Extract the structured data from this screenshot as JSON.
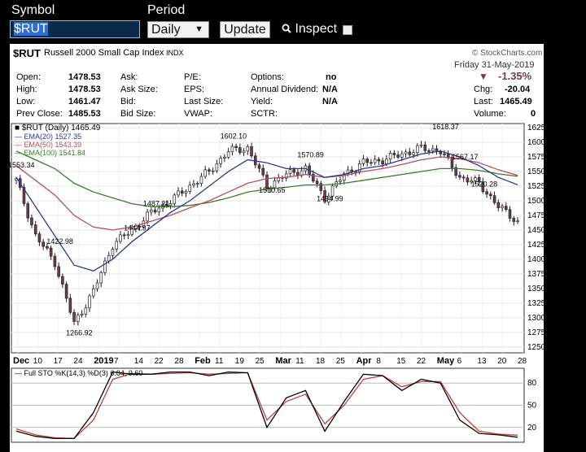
{
  "toolbar": {
    "symbol_label": "Symbol",
    "symbol_value": "$RUT",
    "period_label": "Period",
    "period_value": "Daily",
    "update_label": "Update",
    "inspect_label": "Inspect"
  },
  "header": {
    "symbol": "$RUT",
    "name": "Russell 2000 Small Cap Index",
    "exchange": "INDX",
    "brand": "© StockCharts.com",
    "date": "Friday  31-May-2019",
    "change_pct": "-1.35%",
    "change_arrow": "▼",
    "quote_left": [
      {
        "label": "Open:",
        "value": "1478.53"
      },
      {
        "label": "High:",
        "value": "1478.53"
      },
      {
        "label": "Low:",
        "value": "1461.47"
      },
      {
        "label": "Prev Close:",
        "value": "1485.53"
      }
    ],
    "quote_mid": [
      "Ask:",
      "Ask Size:",
      "Bid:",
      "Bid Size:"
    ],
    "quote_mid2": [
      "P/E:",
      "EPS:",
      "Last Size:",
      "VWAP:"
    ],
    "quote_right": [
      {
        "label": "Options:",
        "value": "no"
      },
      {
        "label": "Annual Dividend:",
        "value": "N/A"
      },
      {
        "label": "Yield:",
        "value": "N/A"
      },
      {
        "label": "SCTR:",
        "value": ""
      }
    ],
    "quote_far": [
      {
        "label": "Chg:",
        "value": "-20.04"
      },
      {
        "label": "Last:",
        "value": "1465.49"
      },
      {
        "label": "Volume:",
        "value": "0"
      }
    ]
  },
  "legend": {
    "main": "$RUT (Daily) 1465.49",
    "ema20": "EMA(20) 1527.35",
    "ema50": "EMA(50) 1543.39",
    "ema100": "EMA(100) 1541.84",
    "sto": "Full STO %K(14,3) %D(3) 6.84, 9.60"
  },
  "colors": {
    "ema20": "#2c3690",
    "ema50": "#b05060",
    "ema100": "#3c7a2c",
    "candle_up": "#ffffff",
    "candle_down": "#6e3b55",
    "sto_k": "#000000",
    "sto_d": "#c04040"
  },
  "price_axis": [
    "1625",
    "1600",
    "1575",
    "1550",
    "1525",
    "1500",
    "1475",
    "1450",
    "1425",
    "1400",
    "1375",
    "1350",
    "1325",
    "1300",
    "1275",
    "1250"
  ],
  "sto_axis": [
    "80",
    "50",
    "20"
  ],
  "x_axis": [
    {
      "label": "Dec",
      "bold": true
    },
    {
      "label": "10"
    },
    {
      "label": "17"
    },
    {
      "label": "24"
    },
    {
      "label": "2019",
      "bold": true
    },
    {
      "label": "7"
    },
    {
      "label": "14"
    },
    {
      "label": "22"
    },
    {
      "label": "28"
    },
    {
      "label": "Feb",
      "bold": true
    },
    {
      "label": "11"
    },
    {
      "label": "19"
    },
    {
      "label": "25"
    },
    {
      "label": "Mar",
      "bold": true
    },
    {
      "label": "11"
    },
    {
      "label": "18"
    },
    {
      "label": "25"
    },
    {
      "label": "Apr",
      "bold": true
    },
    {
      "label": "8"
    },
    {
      "label": "15"
    },
    {
      "label": "22"
    },
    {
      "label": "May",
      "bold": true
    },
    {
      "label": "6"
    },
    {
      "label": "13"
    },
    {
      "label": "20"
    },
    {
      "label": "28"
    }
  ],
  "annotations": [
    "1553.34",
    "1422.98",
    "1266.92",
    "1487.21",
    "1444.97",
    "1602.10",
    "1510.65",
    "1570.89",
    "1494.99",
    "1618.37",
    "1567.17",
    "1520.28"
  ],
  "chart_data": {
    "type": "candlestick",
    "title": "$RUT Russell 2000 Small Cap Index INDX",
    "ylim": [
      1240,
      1632
    ],
    "dates": [
      "Dec 3",
      "Dec 10",
      "Dec 17",
      "Dec 24",
      "Dec 31",
      "Jan 7",
      "Jan 14",
      "Jan 22",
      "Jan 28",
      "Feb 4",
      "Feb 11",
      "Feb 19",
      "Feb 25",
      "Mar 4",
      "Mar 11",
      "Mar 18",
      "Mar 25",
      "Apr 1",
      "Apr 8",
      "Apr 15",
      "Apr 22",
      "Apr 29",
      "May 6",
      "May 13",
      "May 20",
      "May 28",
      "May 31"
    ],
    "close": [
      1535,
      1440,
      1395,
      1290,
      1345,
      1425,
      1450,
      1480,
      1500,
      1525,
      1550,
      1585,
      1590,
      1525,
      1545,
      1555,
      1505,
      1545,
      1565,
      1570,
      1580,
      1590,
      1585,
      1540,
      1530,
      1490,
      1465.49
    ],
    "ema20": [
      1540,
      1490,
      1440,
      1390,
      1380,
      1400,
      1430,
      1455,
      1480,
      1500,
      1525,
      1550,
      1570,
      1565,
      1555,
      1555,
      1540,
      1545,
      1555,
      1560,
      1570,
      1580,
      1585,
      1575,
      1560,
      1540,
      1527.35
    ],
    "ema50": [
      1560,
      1535,
      1510,
      1475,
      1455,
      1450,
      1455,
      1465,
      1475,
      1488,
      1500,
      1515,
      1530,
      1538,
      1540,
      1545,
      1540,
      1543,
      1550,
      1555,
      1562,
      1570,
      1575,
      1572,
      1565,
      1553,
      1543.39
    ],
    "ema100": [
      1585,
      1570,
      1555,
      1530,
      1515,
      1505,
      1495,
      1490,
      1490,
      1492,
      1497,
      1505,
      1515,
      1520,
      1523,
      1527,
      1527,
      1530,
      1535,
      1540,
      1545,
      1550,
      1555,
      1555,
      1552,
      1546,
      1541.84
    ],
    "sto_k": [
      15,
      8,
      5,
      5,
      40,
      95,
      92,
      92,
      95,
      95,
      90,
      95,
      94,
      20,
      60,
      70,
      15,
      55,
      92,
      90,
      70,
      85,
      80,
      30,
      12,
      10,
      6.84
    ],
    "sto_d": [
      18,
      10,
      6,
      5,
      30,
      85,
      93,
      92,
      93,
      94,
      92,
      93,
      94,
      30,
      55,
      65,
      25,
      50,
      85,
      90,
      75,
      82,
      82,
      40,
      15,
      11,
      9.6
    ]
  }
}
